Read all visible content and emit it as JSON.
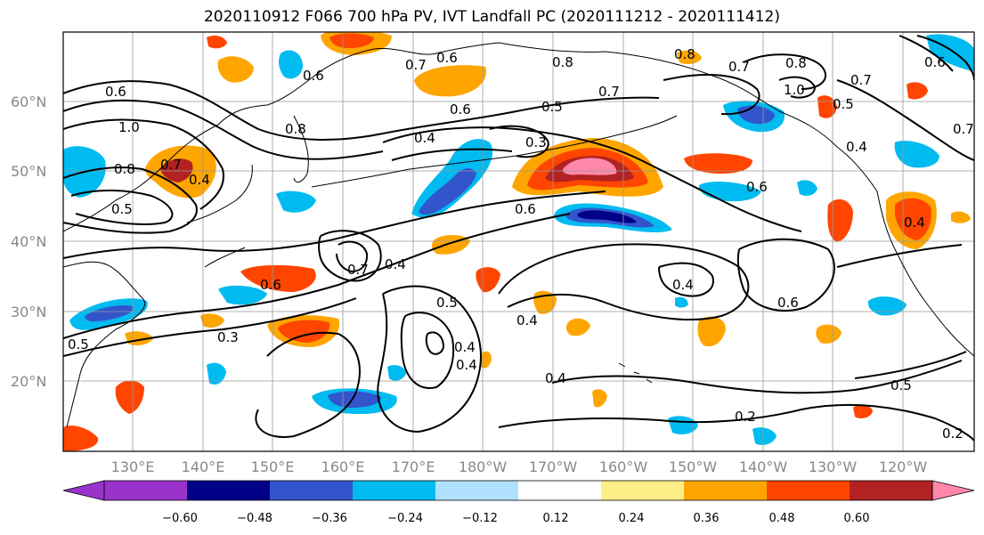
{
  "title": "2020110912 F066 700 hPa PV, IVT Landfall PC (2020111212 - 2020111412)",
  "map": {
    "lat_labels": [
      "60°N",
      "50°N",
      "40°N",
      "30°N",
      "20°N"
    ],
    "lon_labels": [
      "130°E",
      "140°E",
      "150°E",
      "160°E",
      "170°E",
      "180°W",
      "170°W",
      "160°W",
      "150°W",
      "140°W",
      "130°W",
      "120°W"
    ],
    "contour_labels": [
      "0.6",
      "1.0",
      "0.8",
      "0.7",
      "0.4",
      "0.5",
      "0.8",
      "0.6",
      "0.7",
      "0.6",
      "0.8",
      "0.7",
      "0.6",
      "0.5",
      "0.4",
      "0.3",
      "0.6",
      "0.7",
      "0.8",
      "0.8",
      "1.0",
      "0.7",
      "0.6",
      "0.5",
      "0.4",
      "0.6",
      "0.7",
      "0.4",
      "0.6",
      "0.5",
      "0.4",
      "0.3",
      "0.4",
      "0.4",
      "0.4",
      "0.6",
      "0.4",
      "0.5",
      "0.2",
      "0.2",
      "0.5",
      "0.4",
      "0.7"
    ]
  },
  "colorbar": {
    "tick_labels": [
      "−0.60",
      "−0.48",
      "−0.36",
      "−0.24",
      "−0.12",
      "0.12",
      "0.24",
      "0.36",
      "0.48",
      "0.60"
    ],
    "colors": [
      "#9933cc",
      "#000088",
      "#3355cc",
      "#00bbf0",
      "#b0e2ff",
      "#ffffff",
      "#ffee88",
      "#ffa500",
      "#ff4500",
      "#b22222",
      "#ff88aa",
      "#ff88aa"
    ]
  },
  "fill_colors": {
    "neg_strong": "#000088",
    "neg_med": "#3355cc",
    "neg_light": "#00bbf0",
    "neg_pale": "#b0e2ff",
    "pos_pale": "#ffee88",
    "pos_light": "#ffa500",
    "pos_med": "#ff4500",
    "pos_strong": "#b22222",
    "pos_max": "#ff88aa"
  }
}
